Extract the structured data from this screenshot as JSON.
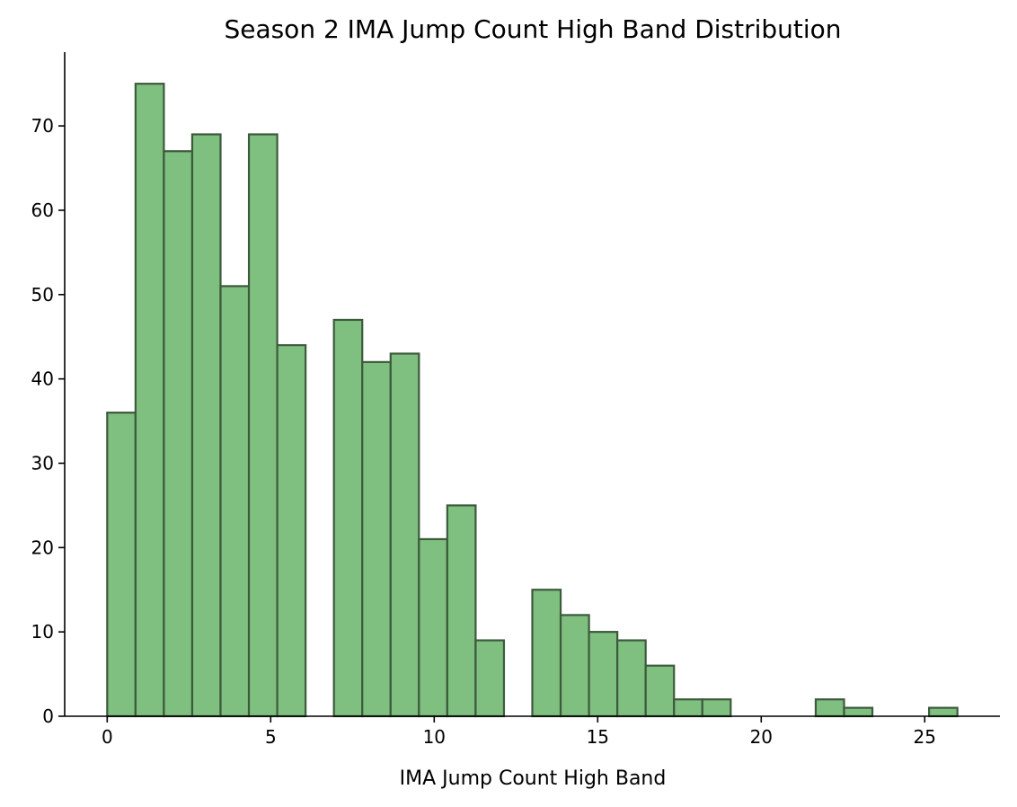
{
  "chart_data": {
    "type": "bar",
    "title": "Season 2 IMA Jump Count High Band Distribution",
    "xlabel": "IMA Jump Count High Band",
    "ylabel": "",
    "xlim": [
      -1.3,
      27.3
    ],
    "ylim": [
      0,
      78.75
    ],
    "xticks": [
      0,
      5,
      10,
      15,
      20,
      25
    ],
    "yticks": [
      0,
      10,
      20,
      30,
      40,
      50,
      60,
      70
    ],
    "grid": false,
    "bin_width": 0.8667,
    "bins": [
      {
        "x0": 0.0,
        "value": 36
      },
      {
        "x0": 0.8667,
        "value": 75
      },
      {
        "x0": 1.7333,
        "value": 67
      },
      {
        "x0": 2.6,
        "value": 69
      },
      {
        "x0": 3.4667,
        "value": 51
      },
      {
        "x0": 4.3333,
        "value": 69
      },
      {
        "x0": 5.2,
        "value": 44
      },
      {
        "x0": 6.0667,
        "value": 0
      },
      {
        "x0": 6.9333,
        "value": 47
      },
      {
        "x0": 7.8,
        "value": 42
      },
      {
        "x0": 8.6667,
        "value": 43
      },
      {
        "x0": 9.5333,
        "value": 21
      },
      {
        "x0": 10.4,
        "value": 25
      },
      {
        "x0": 11.2667,
        "value": 9
      },
      {
        "x0": 12.1333,
        "value": 0
      },
      {
        "x0": 13.0,
        "value": 15
      },
      {
        "x0": 13.8667,
        "value": 12
      },
      {
        "x0": 14.7333,
        "value": 10
      },
      {
        "x0": 15.6,
        "value": 9
      },
      {
        "x0": 16.4667,
        "value": 6
      },
      {
        "x0": 17.3333,
        "value": 2
      },
      {
        "x0": 18.2,
        "value": 2
      },
      {
        "x0": 19.0667,
        "value": 0
      },
      {
        "x0": 19.9333,
        "value": 0
      },
      {
        "x0": 20.8,
        "value": 0
      },
      {
        "x0": 21.6667,
        "value": 2
      },
      {
        "x0": 22.5333,
        "value": 1
      },
      {
        "x0": 23.4,
        "value": 0
      },
      {
        "x0": 24.2667,
        "value": 0
      },
      {
        "x0": 25.1333,
        "value": 1
      }
    ],
    "colors": {
      "bar_fill": "#7fbf7f",
      "bar_edge": "#3c5a3c"
    }
  }
}
